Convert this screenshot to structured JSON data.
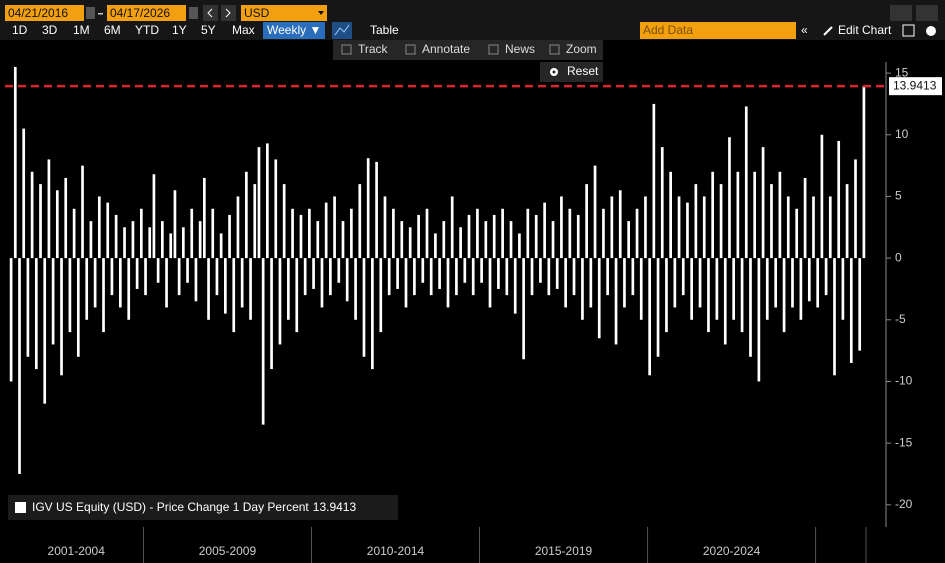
{
  "toolbar": {
    "start_date": "04/21/2016",
    "end_date": "04/17/2026",
    "currency": "USD",
    "ranges": [
      "1D",
      "3D",
      "1M",
      "6M",
      "YTD",
      "1Y",
      "5Y",
      "Max"
    ],
    "frequency": "Weekly ▼",
    "table": "Table",
    "add_data": "Add Data",
    "edit_chart": "Edit Chart",
    "tools": [
      "Track",
      "Annotate",
      "News",
      "Zoom"
    ],
    "reset": "Reset"
  },
  "chart_data": {
    "type": "bar",
    "legend": "IGV US Equity (USD) - Price Change 1 Day Percent",
    "color": "#ffffff",
    "last_line_color": "#d9262c",
    "ylim": [
      -21.8,
      15.9
    ],
    "yticks": [
      15,
      10,
      5,
      0,
      -5,
      -10,
      -15,
      -20
    ],
    "groups": [
      {
        "label": "2001-2004",
        "values": [
          -10,
          15.5,
          -17.5,
          10.5,
          -8,
          7,
          -9,
          6,
          -11.8,
          8,
          -7,
          5.5,
          -9.5,
          6.5,
          -6,
          4,
          -8,
          7.5,
          -5,
          3,
          -4,
          5,
          -6,
          4.5,
          -3,
          3.5,
          -4,
          2.5,
          -5,
          3,
          -2.5,
          4
        ]
      },
      {
        "label": "2005-2009",
        "values": [
          -3,
          2.5,
          6.8,
          -2,
          3,
          -4,
          2,
          5.5,
          -3,
          2.5,
          -2,
          4,
          -3.5,
          3,
          6.5,
          -5,
          4,
          -3,
          2,
          -4.5,
          3.5,
          -6,
          5,
          -4,
          7,
          -5,
          6,
          9,
          -13.5,
          9.3,
          -9,
          8,
          -7,
          6,
          -5,
          4,
          -6,
          3.5,
          -3,
          4
        ]
      },
      {
        "label": "2010-2014",
        "values": [
          -2.5,
          3,
          -4,
          4.5,
          -3,
          5,
          -2,
          3,
          -3.5,
          4,
          -5,
          6,
          -8,
          8.1,
          -9,
          7.8,
          -6,
          5,
          -3,
          4,
          -2.5,
          3,
          -4,
          2.5,
          -3,
          3.5,
          -2,
          4,
          -3,
          2,
          -2.5,
          3,
          -4,
          5,
          -3,
          2.5,
          -2,
          3.5,
          -3,
          4
        ]
      },
      {
        "label": "2015-2019",
        "values": [
          -2,
          3,
          -4,
          3.5,
          -2.5,
          4,
          -3,
          3,
          -4.5,
          2,
          -8.2,
          4,
          -3,
          3.5,
          -2,
          4.5,
          -3,
          3,
          -2.5,
          5,
          -4,
          4,
          -3,
          3.5,
          -5,
          6,
          -4,
          7.5,
          -6.5,
          4,
          -3,
          5,
          -7,
          5.5,
          -4,
          3,
          -3,
          4,
          -5,
          5
        ]
      },
      {
        "label": "2020-2024",
        "values": [
          -9.5,
          12.5,
          -8,
          9,
          -6,
          7,
          -4,
          5,
          -3,
          4.5,
          -5,
          6,
          -4,
          5,
          -6,
          7,
          -5,
          6,
          -7,
          9.8,
          -5,
          7,
          -6,
          12.3,
          -8,
          7,
          -10,
          9,
          -5,
          6,
          -4,
          7,
          -6,
          5,
          -4,
          4,
          -5,
          6.5,
          -3.5,
          5
        ]
      },
      {
        "label": null,
        "values": [
          -4,
          10,
          -3,
          5,
          -9.5,
          9.5,
          -5,
          6,
          -8.5,
          8,
          -7.5,
          13.9413
        ]
      }
    ]
  }
}
